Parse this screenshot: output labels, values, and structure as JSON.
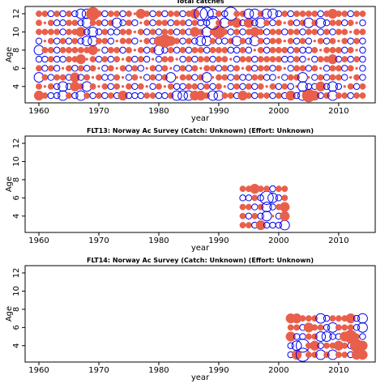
{
  "chart_data": [
    {
      "type": "bubble",
      "title": "Total catches",
      "xlabel": "year",
      "ylabel": "Age",
      "xlim": [
        1957.7,
        2016.1
      ],
      "ylim": [
        2.2,
        12.8
      ],
      "xticks": [
        1960,
        1970,
        1980,
        1990,
        2000,
        2010
      ],
      "yticks": [
        4,
        6,
        8,
        10,
        12
      ],
      "pos_color": "#e8604c",
      "neg_color": "#0000ee",
      "years": [
        1960,
        1961,
        1962,
        1963,
        1964,
        1965,
        1966,
        1967,
        1968,
        1969,
        1970,
        1971,
        1972,
        1973,
        1974,
        1975,
        1976,
        1977,
        1978,
        1979,
        1980,
        1981,
        1982,
        1983,
        1984,
        1985,
        1986,
        1987,
        1988,
        1989,
        1990,
        1991,
        1992,
        1993,
        1994,
        1995,
        1996,
        1997,
        1998,
        1999,
        2000,
        2001,
        2002,
        2003,
        2004,
        2005,
        2006,
        2007,
        2008,
        2009,
        2010,
        2011,
        2012,
        2013,
        2014
      ],
      "ages": [
        3,
        4,
        5,
        6,
        7,
        8,
        9,
        10,
        11,
        12
      ],
      "values": [
        [
          2,
          1,
          -1,
          -1,
          -2,
          1,
          -1,
          -2,
          1,
          -1,
          1,
          -1,
          1,
          -1,
          2,
          -1,
          -1,
          -1,
          1,
          1,
          -1,
          -1,
          1,
          -2,
          -2,
          -2,
          2,
          2,
          1,
          -2,
          -2,
          1,
          1,
          -1,
          2,
          1,
          -1,
          1,
          1,
          -1,
          1,
          -1,
          2,
          -1,
          -2,
          3,
          2,
          -1,
          1,
          -2,
          1,
          1,
          -1,
          1,
          1
        ],
        [
          1,
          0,
          1,
          -1,
          -2,
          -1,
          2,
          1,
          -2,
          1,
          0,
          1,
          -1,
          1,
          0,
          1,
          -1,
          1,
          0,
          -1,
          1,
          0,
          1,
          -1,
          -1,
          1,
          1,
          -1,
          1,
          -1,
          1,
          0,
          -1,
          1,
          -1,
          1,
          -1,
          1,
          0,
          1,
          -1,
          1,
          -1,
          0,
          -2,
          -1,
          -1,
          2,
          -1,
          -2,
          -1,
          0,
          1,
          -1,
          1
        ],
        [
          -2,
          1,
          -1,
          1,
          1,
          -1,
          2,
          -1,
          1,
          0,
          1,
          -1,
          -1,
          1,
          0,
          -1,
          1,
          0,
          -1,
          1,
          -1,
          1,
          -2,
          0,
          1,
          1,
          -1,
          1,
          -2,
          0,
          1,
          1,
          -1,
          1,
          -1,
          -1,
          1,
          1,
          -1,
          -1,
          0,
          -1,
          1,
          1,
          -2,
          0,
          -1,
          1,
          -1,
          1,
          1,
          -1,
          0,
          1,
          -1
        ],
        [
          1,
          -1,
          1,
          -1,
          0,
          1,
          -1,
          1,
          -1,
          1,
          0,
          -1,
          1,
          0,
          1,
          -1,
          1,
          -1,
          0,
          1,
          -1,
          1,
          0,
          -1,
          1,
          -1,
          1,
          0,
          1,
          1,
          -1,
          1,
          -1,
          1,
          0,
          1,
          -1,
          1,
          1,
          -1,
          1,
          0,
          -1,
          1,
          1,
          -1,
          1,
          0,
          -1,
          1,
          1,
          -1,
          1,
          0,
          -1
        ],
        [
          -1,
          -1,
          1,
          -1,
          -1,
          1,
          1,
          2,
          0,
          1,
          -1,
          1,
          -1,
          1,
          0,
          1,
          -1,
          1,
          -1,
          0,
          -1,
          1,
          1,
          0,
          -1,
          1,
          -1,
          1,
          1,
          -1,
          1,
          1,
          0,
          -1,
          1,
          1,
          -1,
          1,
          1,
          1,
          1,
          -1,
          -1,
          1,
          -1,
          0,
          -1,
          1,
          1,
          2,
          -1,
          1,
          -1,
          1,
          -1
        ],
        [
          -2,
          1,
          1,
          -1,
          1,
          1,
          1,
          1,
          1,
          2,
          0,
          -1,
          1,
          1,
          -1,
          1,
          0,
          1,
          -1,
          1,
          -2,
          -1,
          1,
          -1,
          1,
          -1,
          1,
          1,
          -1,
          1,
          1,
          1,
          -1,
          -1,
          1,
          -1,
          0,
          1,
          -1,
          1,
          1,
          1,
          -1,
          1,
          -1,
          -1,
          1,
          0,
          1,
          1,
          1,
          -1,
          1,
          0,
          -1
        ],
        [
          -1,
          0,
          1,
          -1,
          1,
          -1,
          1,
          -1,
          -2,
          -2,
          1,
          1,
          -1,
          0,
          1,
          1,
          -1,
          0,
          1,
          -1,
          2,
          3,
          2,
          1,
          -1,
          1,
          -1,
          -2,
          -2,
          1,
          -1,
          -1,
          1,
          -2,
          1,
          -1,
          -2,
          1,
          -1,
          1,
          1,
          0,
          1,
          -1,
          1,
          -1,
          0,
          1,
          -1,
          1,
          0,
          1,
          -1,
          1,
          -1
        ],
        [
          1,
          1,
          1,
          1,
          -1,
          1,
          1,
          2,
          -1,
          -2,
          -1,
          1,
          -1,
          -1,
          1,
          1,
          0,
          1,
          -1,
          1,
          -1,
          1,
          1,
          -1,
          1,
          -1,
          2,
          1,
          -2,
          1,
          3,
          1,
          -1,
          1,
          -1,
          1,
          2,
          1,
          -1,
          1,
          1,
          -1,
          1,
          1,
          -1,
          1,
          1,
          -1,
          1,
          -1,
          1,
          1,
          0,
          1,
          1
        ],
        [
          1,
          0,
          1,
          -1,
          -1,
          1,
          1,
          -1,
          -2,
          1,
          1,
          -1,
          1,
          -2,
          -1,
          1,
          -1,
          0,
          1,
          -1,
          1,
          1,
          -1,
          1,
          1,
          -1,
          1,
          -1,
          -1,
          -3,
          1,
          -2,
          1,
          2,
          -1,
          2,
          -1,
          -2,
          1,
          -1,
          1,
          0,
          1,
          -1,
          1,
          -2,
          1,
          -2,
          -1,
          1,
          1,
          -1,
          1,
          0,
          -1
        ],
        [
          1,
          1,
          -1,
          1,
          -1,
          1,
          -1,
          -2,
          -2,
          3,
          1,
          -1,
          1,
          1,
          -1,
          1,
          0,
          2,
          1,
          -1,
          1,
          -1,
          1,
          1,
          -1,
          1,
          2,
          -3,
          -3,
          -2,
          1,
          -1,
          -3,
          1,
          1,
          -2,
          -2,
          1,
          -2,
          -2,
          -1,
          1,
          -1,
          1,
          1,
          1,
          1,
          -1,
          1,
          2,
          1,
          1,
          -1,
          1,
          1
        ]
      ]
    },
    {
      "type": "bubble",
      "title": "FLT13: Norway Ac Survey (Catch: Unknown) (Effort: Unknown)",
      "xlabel": "year",
      "ylabel": "Age",
      "xlim": [
        1957.7,
        2016.1
      ],
      "ylim": [
        2.2,
        12.8
      ],
      "xticks": [
        1960,
        1970,
        1980,
        1990,
        2000,
        2010
      ],
      "yticks": [
        4,
        6,
        8,
        10,
        12
      ],
      "pos_color": "#e8604c",
      "neg_color": "#0000ee",
      "years": [
        1994,
        1995,
        1996,
        1997,
        1998,
        1999,
        2000,
        2001
      ],
      "ages": [
        3,
        4,
        5,
        6,
        7
      ],
      "values": [
        [
          1,
          1,
          -1,
          2,
          -1,
          -1,
          -1,
          -2
        ],
        [
          1,
          -1,
          1,
          -1,
          -2,
          0,
          -1,
          2
        ],
        [
          1,
          1,
          -1,
          1,
          -2,
          -1,
          1,
          2
        ],
        [
          -1,
          -1,
          1,
          -1,
          -3,
          -2,
          -1,
          1
        ],
        [
          1,
          1,
          2,
          1,
          1,
          -1,
          1,
          1
        ]
      ]
    },
    {
      "type": "bubble",
      "title": "FLT14: Norway Ac Survey (Catch: Unknown) (Effort: Unknown)",
      "xlabel": "year",
      "ylabel": "Age",
      "xlim": [
        1957.7,
        2016.1
      ],
      "ylim": [
        2.2,
        12.8
      ],
      "xticks": [
        1960,
        1970,
        1980,
        1990,
        2000,
        2010
      ],
      "yticks": [
        4,
        6,
        8,
        10,
        12
      ],
      "pos_color": "#e8604c",
      "neg_color": "#0000ee",
      "years": [
        2002,
        2003,
        2004,
        2005,
        2006,
        2007,
        2008,
        2009,
        2010,
        2011,
        2012,
        2013,
        2014
      ],
      "ages": [
        3,
        4,
        5,
        6,
        7
      ],
      "values": [
        [
          -1,
          2,
          -3,
          1,
          1,
          -2,
          1,
          -2,
          1,
          1,
          -1,
          2,
          2
        ],
        [
          -1,
          -2,
          -3,
          1,
          2,
          -1,
          1,
          1,
          2,
          1,
          -1,
          3,
          2
        ],
        [
          2,
          -1,
          -1,
          1,
          1,
          -2,
          -2,
          -1,
          -1,
          2,
          3,
          1,
          -1
        ],
        [
          1,
          1,
          -1,
          2,
          1,
          1,
          -1,
          -2,
          1,
          1,
          1,
          -1,
          -2
        ],
        [
          2,
          2,
          1,
          1,
          1,
          -2,
          -1,
          1,
          1,
          1,
          2,
          -1,
          -2
        ]
      ]
    }
  ]
}
